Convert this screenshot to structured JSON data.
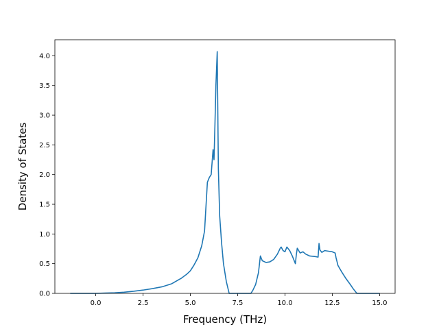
{
  "chart_data": {
    "type": "line",
    "title": "",
    "xlabel": "Frequency (THz)",
    "ylabel": "Density of States",
    "xlim": [
      -2.16,
      15.82
    ],
    "ylim": [
      0,
      4.27
    ],
    "xticks": [
      "0.0",
      "2.5",
      "5.0",
      "7.5",
      "10.0",
      "12.5",
      "15.0"
    ],
    "xtick_values": [
      0,
      2.5,
      5,
      7.5,
      10,
      12.5,
      15
    ],
    "yticks": [
      "0.0",
      "0.5",
      "1.0",
      "1.5",
      "2.0",
      "2.5",
      "3.0",
      "3.5",
      "4.0"
    ],
    "ytick_values": [
      0,
      0.5,
      1,
      1.5,
      2,
      2.5,
      3,
      3.5,
      4
    ],
    "grid": false,
    "line_color": "#1f77b4",
    "series": [
      {
        "x": [
          -1.35,
          -1.0,
          0.0,
          0.5,
          1.0,
          1.5,
          2.0,
          2.5,
          3.0,
          3.5,
          4.0,
          4.5,
          4.8,
          5.0,
          5.2,
          5.4,
          5.6,
          5.75,
          5.85,
          5.9,
          6.0,
          6.1,
          6.2,
          6.25,
          6.3,
          6.35,
          6.42,
          6.48,
          6.55,
          6.65,
          6.75,
          6.9,
          7.05,
          7.2,
          8.2,
          8.3,
          8.45,
          8.6,
          8.7,
          8.8,
          9.0,
          9.2,
          9.4,
          9.6,
          9.75,
          9.8,
          9.9,
          10.0,
          10.1,
          10.25,
          10.4,
          10.55,
          10.6,
          10.65,
          10.8,
          10.95,
          11.1,
          11.3,
          11.6,
          11.75,
          11.8,
          11.85,
          11.95,
          12.1,
          12.3,
          12.5,
          12.65,
          12.7,
          12.8,
          13.0,
          13.2,
          13.45,
          13.6,
          13.8,
          14.2,
          15.0
        ],
        "y": [
          0.0,
          0.0,
          0.0,
          0.005,
          0.01,
          0.02,
          0.035,
          0.055,
          0.08,
          0.11,
          0.16,
          0.25,
          0.32,
          0.38,
          0.48,
          0.6,
          0.8,
          1.05,
          1.6,
          1.87,
          1.95,
          2.0,
          2.42,
          2.25,
          2.85,
          3.5,
          4.07,
          2.1,
          1.3,
          0.85,
          0.5,
          0.2,
          0.0,
          0.0,
          0.0,
          0.05,
          0.15,
          0.35,
          0.63,
          0.55,
          0.52,
          0.53,
          0.57,
          0.66,
          0.76,
          0.78,
          0.72,
          0.7,
          0.78,
          0.72,
          0.62,
          0.5,
          0.65,
          0.76,
          0.68,
          0.7,
          0.66,
          0.63,
          0.62,
          0.61,
          0.84,
          0.73,
          0.69,
          0.72,
          0.71,
          0.7,
          0.68,
          0.6,
          0.47,
          0.36,
          0.26,
          0.15,
          0.08,
          0.0,
          0.0,
          0.0
        ]
      }
    ]
  }
}
